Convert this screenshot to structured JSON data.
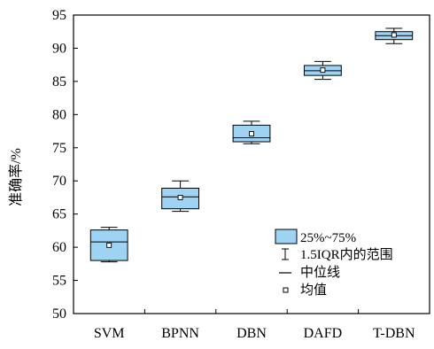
{
  "chart_data": {
    "type": "boxplot",
    "categories": [
      "SVM",
      "BPNN",
      "DBN",
      "DAFD",
      "T-DBN"
    ],
    "boxes": [
      {
        "whisker_low": 57.8,
        "q1": 58.0,
        "median": 60.8,
        "mean": 60.3,
        "q3": 62.6,
        "whisker_high": 63.0
      },
      {
        "whisker_low": 65.4,
        "q1": 65.8,
        "median": 67.6,
        "mean": 67.5,
        "q3": 68.9,
        "whisker_high": 70.0
      },
      {
        "whisker_low": 75.6,
        "q1": 75.9,
        "median": 76.5,
        "mean": 77.1,
        "q3": 78.4,
        "whisker_high": 79.0
      },
      {
        "whisker_low": 85.3,
        "q1": 85.9,
        "median": 86.6,
        "mean": 86.7,
        "q3": 87.4,
        "whisker_high": 88.0
      },
      {
        "whisker_low": 90.7,
        "q1": 91.3,
        "median": 91.9,
        "mean": 92.0,
        "q3": 92.5,
        "whisker_high": 93.0
      }
    ],
    "xlabel": "",
    "ylabel": "准确率/%",
    "ylim": [
      50,
      95
    ],
    "yticks": [
      "50",
      "55",
      "60",
      "65",
      "70",
      "75",
      "80",
      "85",
      "90",
      "95"
    ],
    "grid": false,
    "box_color": "#9fd3f3",
    "legend_position": "bottom-right",
    "legend": {
      "box": "25%~75%",
      "whisker": "1.5IQR内的范围",
      "median": "中位线",
      "mean": "均值"
    }
  }
}
